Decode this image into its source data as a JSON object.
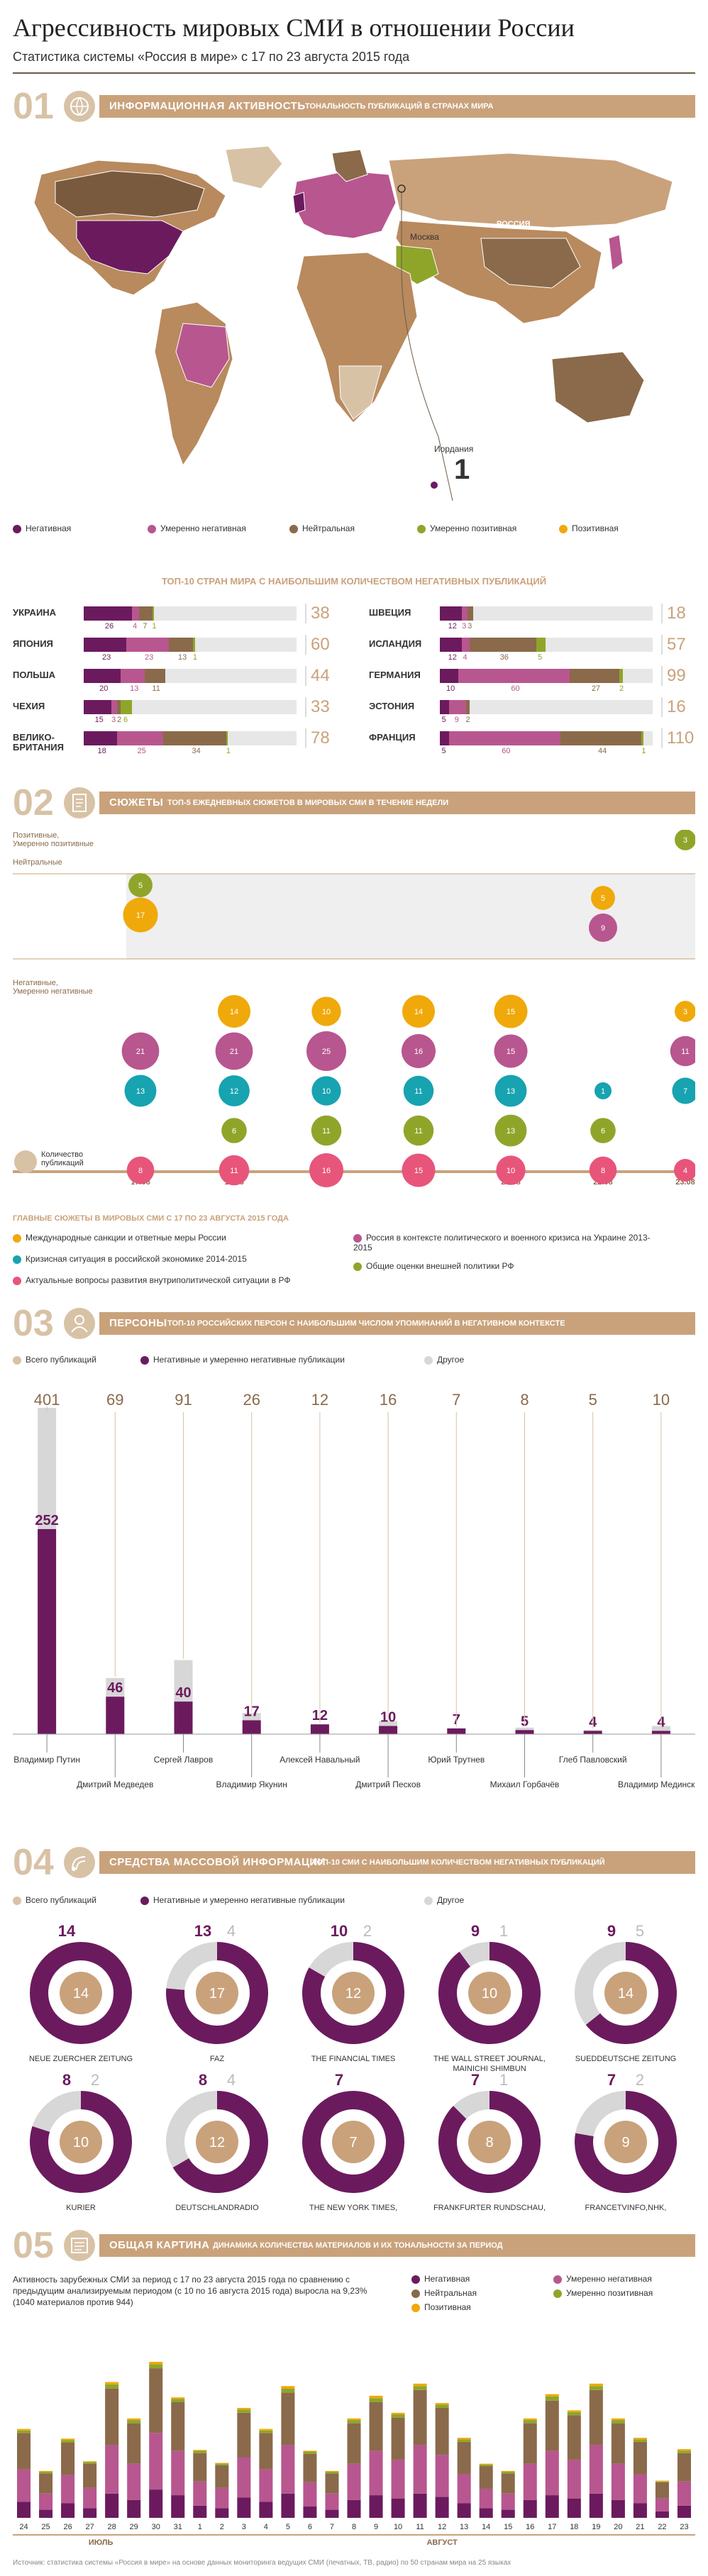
{
  "header": {
    "title": "Агрессивность мировых СМИ в отношении России",
    "subtitle": "Статистика системы «Россия в мире» с 17 по 23 августа 2015 года"
  },
  "colors": {
    "negative": "#6b1a5e",
    "moderate_negative": "#b8568f",
    "neutral": "#8a6a4a",
    "moderate_positive": "#8fa52a",
    "positive": "#f0a90a",
    "gray": "#d7d7d7",
    "tan": "#c9a27b"
  },
  "section1": {
    "num": "01",
    "title": "ИНФОРМАЦИОННАЯ АКТИВНОСТЬ",
    "subtitle": "ТОНАЛЬНОСТЬ ПУБЛИКАЦИЙ В СТРАНАХ МИРА",
    "map_labels": {
      "russia": "РОССИЯ",
      "moscow": "Москва",
      "jordan": "Иордания",
      "jordan_value": "1"
    },
    "legend": [
      "Негативная",
      "Умеренно негативная",
      "Нейтральная",
      "Умеренно позитивная",
      "Позитивная"
    ],
    "top10_title": "ТОП-10 СТРАН МИРА С НАИБОЛЬШИМ КОЛИЧЕСТВОМ НЕГАТИВНЫХ ПУБЛИКАЦИЙ",
    "countries_left": [
      {
        "name": "УКРАИНА",
        "total": "38",
        "segments": [
          26,
          4,
          7,
          1
        ],
        "labels": [
          "26",
          "4",
          "7",
          "1"
        ]
      },
      {
        "name": "ЯПОНИЯ",
        "total": "60",
        "segments": [
          23,
          23,
          13,
          1
        ],
        "labels": [
          "23",
          "23",
          "13",
          "1"
        ]
      },
      {
        "name": "ПОЛЬША",
        "total": "44",
        "segments": [
          20,
          13,
          11,
          0
        ],
        "labels": [
          "20",
          "13",
          "11",
          ""
        ]
      },
      {
        "name": "ЧЕХИЯ",
        "total": "33",
        "segments": [
          15,
          3,
          2,
          6,
          0
        ],
        "labels": [
          "15",
          "3",
          "2",
          "6",
          ""
        ]
      },
      {
        "name": "ВЕЛИКО-\nБРИТАНИЯ",
        "total": "78",
        "segments": [
          18,
          25,
          34,
          1
        ],
        "labels": [
          "18",
          "25",
          "34",
          "1"
        ]
      }
    ],
    "countries_right": [
      {
        "name": "ШВЕЦИЯ",
        "total": "18",
        "segments": [
          12,
          3,
          3
        ],
        "labels": [
          "12",
          "3",
          "3"
        ]
      },
      {
        "name": "ИСЛАНДИЯ",
        "total": "57",
        "segments": [
          12,
          4,
          36,
          5
        ],
        "labels": [
          "12",
          "4",
          "36",
          "5"
        ]
      },
      {
        "name": "ГЕРМАНИЯ",
        "total": "99",
        "segments": [
          10,
          60,
          27,
          2
        ],
        "labels": [
          "10",
          "60",
          "27",
          "2"
        ]
      },
      {
        "name": "ЭСТОНИЯ",
        "total": "16",
        "segments": [
          5,
          9,
          2
        ],
        "labels": [
          "5",
          "9",
          "2"
        ]
      },
      {
        "name": "ФРАНЦИЯ",
        "total": "110",
        "segments": [
          5,
          60,
          44,
          1
        ],
        "labels": [
          "5",
          "60",
          "44",
          "1"
        ]
      }
    ]
  },
  "section2": {
    "num": "02",
    "title": "СЮЖЕТЫ",
    "subtitle": "ТОП-5 ЕЖЕДНЕВНЫХ СЮЖЕТОВ В МИРОВЫХ СМИ В ТЕЧЕНИЕ НЕДЕЛИ",
    "y_labels": [
      "Позитивные,\nУмеренно позитивные",
      "Нейтральные",
      "Негативные,\nУмеренно негативные"
    ],
    "count_label": "Количество\nпубликаций",
    "legend_title": "ГЛАВНЫЕ СЮЖЕТЫ В МИРОВЫХ СМИ С 17 ПО 23 АВГУСТА 2015 ГОДА",
    "legend": [
      "Международные санкции и ответные меры России",
      "Кризисная ситуация в российской экономике 2014-2015",
      "Актуальные вопросы развития внутриполитической ситуации в РФ",
      "Россия в контексте политического и военного кризиса на Украине 2013-2015",
      "Общие оценки внешней политики РФ"
    ]
  },
  "section3": {
    "num": "03",
    "title": "ПЕРСОНЫ",
    "subtitle": "ТОП-10 РОССИЙСКИХ ПЕРСОН С НАИБОЛЬШИМ ЧИСЛОМ УПОМИНАНИЙ В НЕГАТИВНОМ КОНТЕКСТЕ",
    "legend": [
      "Всего публикаций",
      "Негативные и умеренно негативные публикации",
      "Другое"
    ],
    "persons": [
      {
        "name": "Владимир Путин",
        "total": "401",
        "neg": "252"
      },
      {
        "name": "Дмитрий Медведев",
        "total": "69",
        "neg": "46"
      },
      {
        "name": "Сергей Лавров",
        "total": "91",
        "neg": "40"
      },
      {
        "name": "Владимир Якунин",
        "total": "26",
        "neg": "17"
      },
      {
        "name": "Алексей Навальный",
        "total": "12",
        "neg": "12"
      },
      {
        "name": "Дмитрий Песков",
        "total": "16",
        "neg": "10"
      },
      {
        "name": "Юрий Трутнев",
        "total": "7",
        "neg": "7"
      },
      {
        "name": "Михаил Горбачёв",
        "total": "8",
        "neg": "5"
      },
      {
        "name": "Глеб Павловский",
        "total": "5",
        "neg": "4"
      },
      {
        "name": "Владимир Мединский",
        "total": "10",
        "neg": "4"
      }
    ]
  },
  "section4": {
    "num": "04",
    "title": "СРЕДСТВА МАССОВОЙ ИНФОРМАЦИИ",
    "subtitle": "ТОП-10 СМИ С НАИБОЛЬШИМ КОЛИЧЕСТВОМ НЕГАТИВНЫХ ПУБЛИКАЦИЙ",
    "legend": [
      "Всего публикаций",
      "Негативные и умеренно негативные публикации",
      "Другое"
    ],
    "media": [
      {
        "name": "NEUE ZUERCHER ZEITUNG",
        "neg": "14",
        "other": "",
        "total": "14"
      },
      {
        "name": "FAZ",
        "neg": "13",
        "other": "4",
        "total": "17"
      },
      {
        "name": "THE FINANCIAL TIMES",
        "neg": "10",
        "other": "2",
        "total": "12"
      },
      {
        "name": "THE WALL STREET JOURNAL,\nMAINICHI SHIMBUN",
        "neg": "9",
        "other": "1",
        "total": "10"
      },
      {
        "name": "SUEDDEUTSCHE ZEITUNG",
        "neg": "9",
        "other": "5",
        "total": "14"
      },
      {
        "name": "KURIER",
        "neg": "8",
        "other": "2",
        "total": "10"
      },
      {
        "name": "DEUTSCHLANDRADIO",
        "neg": "8",
        "other": "4",
        "total": "12"
      },
      {
        "name": "THE NEW YORK TIMES,\nДЕНЬ",
        "neg": "7",
        "other": "",
        "total": "7"
      },
      {
        "name": "FRANKFURTER RUNDSCHAU,\nDEUTSCHE WELLE",
        "neg": "7",
        "other": "1",
        "total": "8"
      },
      {
        "name": "FRANCETVINFO,NHK,\nPOSTIMEES,SANKEI SHIMBUN",
        "neg": "7",
        "other": "2",
        "total": "9"
      }
    ]
  },
  "section5": {
    "num": "05",
    "title": "ОБЩАЯ КАРТИНА",
    "subtitle": "ДИНАМИКА КОЛИЧЕСТВА МАТЕРИАЛОВ И ИХ ТОНАЛЬНОСТИ ЗА ПЕРИОД",
    "text": "Активность зарубежных СМИ за период с 17 по 23 августа 2015 года по сравнению с предыдущим анализируемым периодом (с 10 по 16 августа 2015 года) выросла на 9,23% (1040 материалов против 944)",
    "legend": [
      "Негативная",
      "Нейтральная",
      "Позитивная",
      "Умеренно негативная",
      "Умеренно позитивная"
    ],
    "month1": "ИЮЛЬ",
    "month2": "АВГУСТ",
    "footer": "Источник: статистика системы «Россия в мире» на основе данных мониторинга ведущих СМИ (печатных, ТВ, радио) по 50 странам мира на 25 языках"
  },
  "chart_data": [
    {
      "type": "bar",
      "title": "ТОП-10 СТРАН МИРА С НАИБОЛЬШИМ КОЛИЧЕСТВОМ НЕГАТИВНЫХ ПУБЛИКАЦИЙ",
      "categories": [
        "УКРАИНА",
        "ЯПОНИЯ",
        "ПОЛЬША",
        "ЧЕХИЯ",
        "ВЕЛИКОБРИТАНИЯ",
        "ШВЕЦИЯ",
        "ИСЛАНДИЯ",
        "ГЕРМАНИЯ",
        "ЭСТОНИЯ",
        "ФРАНЦИЯ"
      ],
      "values": [
        38,
        60,
        44,
        33,
        78,
        18,
        57,
        99,
        16,
        110
      ]
    },
    {
      "type": "scatter",
      "title": "ТОП-5 ЕЖЕДНЕВНЫХ СЮЖЕТОВ В МИРОВЫХ СМИ В ТЕЧЕНИЕ НЕДЕЛИ",
      "days": [
        "17.08",
        "18.08",
        "19.08",
        "20.08",
        "21.08",
        "22.08",
        "23.08"
      ],
      "bubbles": [
        {
          "day": 0,
          "topic": 4,
          "value": 5,
          "zone": "top"
        },
        {
          "day": 0,
          "topic": 0,
          "value": 17,
          "zone": "neutral"
        },
        {
          "day": 6,
          "topic": 4,
          "value": 3,
          "zone": "top"
        },
        {
          "day": 5,
          "topic": 0,
          "value": 5,
          "zone": "neutral"
        },
        {
          "day": 5,
          "topic": 3,
          "value": 9,
          "zone": "neutral"
        },
        {
          "day": 1,
          "topic": 0,
          "value": 14,
          "zone": "neg",
          "row": 0
        },
        {
          "day": 2,
          "topic": 0,
          "value": 10,
          "zone": "neg",
          "row": 0
        },
        {
          "day": 3,
          "topic": 0,
          "value": 14,
          "zone": "neg",
          "row": 0
        },
        {
          "day": 4,
          "topic": 0,
          "value": 15,
          "zone": "neg",
          "row": 0
        },
        {
          "day": 6,
          "topic": 0,
          "value": 3,
          "zone": "neg",
          "row": 0
        },
        {
          "day": 0,
          "topic": 3,
          "value": 21,
          "zone": "neg",
          "row": 1
        },
        {
          "day": 1,
          "topic": 3,
          "value": 21,
          "zone": "neg",
          "row": 1
        },
        {
          "day": 2,
          "topic": 3,
          "value": 25,
          "zone": "neg",
          "row": 1
        },
        {
          "day": 3,
          "topic": 3,
          "value": 16,
          "zone": "neg",
          "row": 1
        },
        {
          "day": 4,
          "topic": 3,
          "value": 15,
          "zone": "neg",
          "row": 1
        },
        {
          "day": 6,
          "topic": 3,
          "value": 11,
          "zone": "neg",
          "row": 1
        },
        {
          "day": 0,
          "topic": 1,
          "value": 13,
          "zone": "neg",
          "row": 2
        },
        {
          "day": 1,
          "topic": 1,
          "value": 12,
          "zone": "neg",
          "row": 2
        },
        {
          "day": 2,
          "topic": 1,
          "value": 10,
          "zone": "neg",
          "row": 2
        },
        {
          "day": 3,
          "topic": 1,
          "value": 11,
          "zone": "neg",
          "row": 2
        },
        {
          "day": 4,
          "topic": 1,
          "value": 13,
          "zone": "neg",
          "row": 2
        },
        {
          "day": 5,
          "topic": 1,
          "value": 1,
          "zone": "neg",
          "row": 2
        },
        {
          "day": 6,
          "topic": 1,
          "value": 7,
          "zone": "neg",
          "row": 2
        },
        {
          "day": 1,
          "topic": 4,
          "value": 6,
          "zone": "neg",
          "row": 3
        },
        {
          "day": 2,
          "topic": 4,
          "value": 11,
          "zone": "neg",
          "row": 3
        },
        {
          "day": 3,
          "topic": 4,
          "value": 11,
          "zone": "neg",
          "row": 3
        },
        {
          "day": 4,
          "topic": 4,
          "value": 13,
          "zone": "neg",
          "row": 3
        },
        {
          "day": 5,
          "topic": 4,
          "value": 6,
          "zone": "neg",
          "row": 3
        },
        {
          "day": 0,
          "topic": 2,
          "value": 8,
          "zone": "neg",
          "row": 4
        },
        {
          "day": 1,
          "topic": 2,
          "value": 11,
          "zone": "neg",
          "row": 4
        },
        {
          "day": 2,
          "topic": 2,
          "value": 16,
          "zone": "neg",
          "row": 4
        },
        {
          "day": 3,
          "topic": 2,
          "value": 15,
          "zone": "neg",
          "row": 4
        },
        {
          "day": 4,
          "topic": 2,
          "value": 10,
          "zone": "neg",
          "row": 4
        },
        {
          "day": 5,
          "topic": 2,
          "value": 8,
          "zone": "neg",
          "row": 4
        },
        {
          "day": 6,
          "topic": 2,
          "value": 4,
          "zone": "neg",
          "row": 4
        }
      ]
    },
    {
      "type": "bar",
      "title": "ТОП-10 РОССИЙСКИХ ПЕРСОН С НАИБОЛЬШИМ ЧИСЛОМ УПОМИНАНИЙ В НЕГАТИВНОМ КОНТЕКСТЕ",
      "categories": [
        "Владимир Путин",
        "Дмитрий Медведев",
        "Сергей Лавров",
        "Владимир Якунин",
        "Алексей Навальный",
        "Дмитрий Песков",
        "Юрий Трутнев",
        "Михаил Горбачёв",
        "Глеб Павловский",
        "Владимир Мединский"
      ],
      "series": [
        {
          "name": "Всего публикаций",
          "values": [
            401,
            69,
            91,
            26,
            12,
            16,
            7,
            8,
            5,
            10
          ]
        },
        {
          "name": "Негативные и умеренно негативные публикации",
          "values": [
            252,
            46,
            40,
            17,
            12,
            10,
            7,
            5,
            4,
            4
          ]
        }
      ]
    },
    {
      "type": "pie",
      "title": "ТОП-10 СМИ С НАИБОЛЬШИМ КОЛИЧЕСТВОМ НЕГАТИВНЫХ ПУБЛИКАЦИЙ",
      "categories": [
        "NEUE ZUERCHER ZEITUNG",
        "FAZ",
        "THE FINANCIAL TIMES",
        "THE WALL STREET JOURNAL, MAINICHI SHIMBUN",
        "SUEDDEUTSCHE ZEITUNG",
        "KURIER",
        "DEUTSCHLANDRADIO",
        "THE NEW YORK TIMES, ДЕНЬ",
        "FRANKFURTER RUNDSCHAU, DEUTSCHE WELLE",
        "FRANCETVINFO,NHK, POSTIMEES,SANKEI SHIMBUN"
      ],
      "series": [
        {
          "name": "Негативные",
          "values": [
            14,
            13,
            10,
            9,
            9,
            8,
            8,
            7,
            7,
            7
          ]
        },
        {
          "name": "Другое",
          "values": [
            0,
            4,
            2,
            1,
            5,
            2,
            4,
            0,
            1,
            2
          ]
        }
      ]
    },
    {
      "type": "bar",
      "title": "ДИНАМИКА КОЛИЧЕСТВА МАТЕРИАЛОВ И ИХ ТОНАЛЬНОСТИ ЗА ПЕРИОД",
      "categories": [
        "24",
        "25",
        "26",
        "27",
        "28",
        "29",
        "30",
        "31",
        "1",
        "2",
        "3",
        "4",
        "5",
        "6",
        "7",
        "8",
        "9",
        "10",
        "11",
        "12",
        "13",
        "14",
        "15",
        "16",
        "17",
        "18",
        "19",
        "20",
        "21",
        "22",
        "23"
      ],
      "series": [
        {
          "name": "Негативная",
          "values": [
            20,
            10,
            18,
            12,
            30,
            22,
            35,
            28,
            15,
            12,
            25,
            20,
            30,
            14,
            10,
            22,
            28,
            24,
            30,
            26,
            18,
            12,
            10,
            22,
            28,
            24,
            30,
            22,
            18,
            8,
            15
          ]
        },
        {
          "name": "Умеренно негативная",
          "values": [
            40,
            20,
            35,
            25,
            60,
            45,
            70,
            55,
            30,
            25,
            50,
            40,
            60,
            30,
            20,
            45,
            55,
            48,
            60,
            52,
            36,
            24,
            20,
            45,
            55,
            48,
            60,
            45,
            36,
            16,
            30
          ]
        },
        {
          "name": "Нейтральная",
          "values": [
            45,
            25,
            40,
            30,
            70,
            50,
            80,
            60,
            35,
            28,
            55,
            45,
            65,
            35,
            25,
            50,
            60,
            52,
            68,
            58,
            40,
            28,
            25,
            50,
            62,
            55,
            68,
            50,
            40,
            20,
            35
          ]
        },
        {
          "name": "Умеренно позитивная",
          "values": [
            3,
            2,
            3,
            2,
            5,
            4,
            5,
            4,
            3,
            2,
            4,
            3,
            5,
            3,
            2,
            4,
            5,
            4,
            5,
            4,
            3,
            2,
            2,
            4,
            5,
            4,
            5,
            4,
            3,
            1,
            3
          ]
        },
        {
          "name": "Позитивная",
          "values": [
            2,
            1,
            2,
            1,
            3,
            2,
            3,
            2,
            1,
            1,
            2,
            2,
            3,
            1,
            1,
            2,
            3,
            2,
            3,
            2,
            2,
            1,
            1,
            2,
            3,
            2,
            3,
            2,
            2,
            1,
            2
          ]
        }
      ]
    }
  ]
}
